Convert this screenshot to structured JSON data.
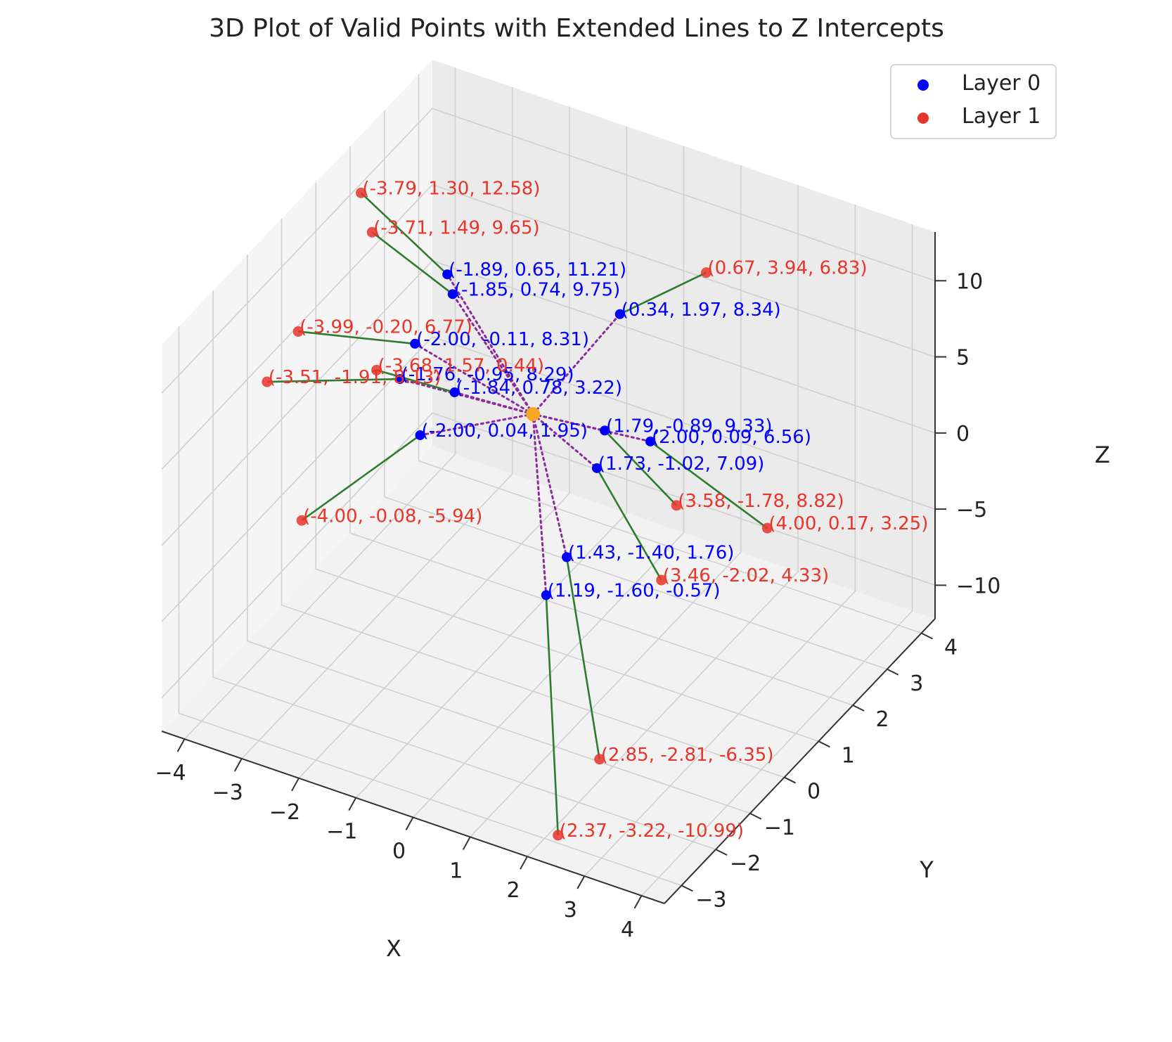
{
  "chart_data": {
    "type": "scatter",
    "projection": "3d",
    "title": "3D Plot of Valid Points with Extended Lines to Z Intercepts",
    "xlabel": "X",
    "ylabel": "Y",
    "zlabel": "Z",
    "xlim": [
      -4.4,
      4.4
    ],
    "ylim": [
      -3.5,
      4.4
    ],
    "zlim": [
      -12.2,
      13.2
    ],
    "xticks": [
      -4,
      -3,
      -2,
      -1,
      0,
      1,
      2,
      3,
      4
    ],
    "yticks": [
      -3,
      -2,
      -1,
      0,
      1,
      2,
      3,
      4
    ],
    "zticks": [
      -10,
      -5,
      0,
      5,
      10
    ],
    "grid": true,
    "legend_position": "upper right",
    "colors": {
      "layer0": "#0000ff",
      "layer1": "#e8352a",
      "origin": "#f5a623",
      "extension_line": "#2e7d2e",
      "projection_line": "#8b2a9b"
    },
    "origin_point": [
      0,
      0,
      6
    ],
    "series": [
      {
        "name": "Layer 0",
        "points": [
          {
            "x": -1.89,
            "y": 0.65,
            "z": 11.21,
            "label": "(-1.89, 0.65, 11.21)"
          },
          {
            "x": -1.85,
            "y": 0.74,
            "z": 9.75,
            "label": "(-1.85, 0.74, 9.75)"
          },
          {
            "x": 0.34,
            "y": 1.97,
            "z": 8.34,
            "label": "(0.34, 1.97, 8.34)"
          },
          {
            "x": -2.0,
            "y": -0.11,
            "z": 8.31,
            "label": "(-2.00, -0.11, 8.31)"
          },
          {
            "x": -1.76,
            "y": -0.95,
            "z": 8.29,
            "label": "(-1.76, -0.95, 8.29)"
          },
          {
            "x": -1.84,
            "y": 0.78,
            "z": 3.22,
            "label": "(-1.84, 0.78, 3.22)"
          },
          {
            "x": 1.79,
            "y": -0.89,
            "z": 9.33,
            "label": "(1.79, -0.89, 9.33)"
          },
          {
            "x": 2.0,
            "y": 0.09,
            "z": 6.56,
            "label": "(2.00, 0.09, 6.56)"
          },
          {
            "x": -2.0,
            "y": 0.04,
            "z": 1.95,
            "label": "(-2.00, 0.04, 1.95)"
          },
          {
            "x": 1.73,
            "y": -1.02,
            "z": 7.09,
            "label": "(1.73, -1.02, 7.09)"
          },
          {
            "x": 1.43,
            "y": -1.4,
            "z": 1.76,
            "label": "(1.43, -1.40, 1.76)"
          },
          {
            "x": 1.19,
            "y": -1.6,
            "z": -0.57,
            "label": "(1.19, -1.60, -0.57)"
          }
        ]
      },
      {
        "name": "Layer 1",
        "points": [
          {
            "x": -3.79,
            "y": 1.3,
            "z": 12.58,
            "label": "(-3.79, 1.30, 12.58)"
          },
          {
            "x": -3.71,
            "y": 1.49,
            "z": 9.65,
            "label": "(-3.71, 1.49, 9.65)"
          },
          {
            "x": 0.67,
            "y": 3.94,
            "z": 6.83,
            "label": "(0.67, 3.94, 6.83)"
          },
          {
            "x": -3.99,
            "y": -0.2,
            "z": 6.77,
            "label": "(-3.99, -0.20, 6.77)"
          },
          {
            "x": -3.51,
            "y": -1.91,
            "z": 8.13,
            "label": "(-3.51, -1.91, 8.13)"
          },
          {
            "x": -3.68,
            "y": 1.57,
            "z": 0.44,
            "label": "(-3.68, 1.57, 0.44)"
          },
          {
            "x": 3.58,
            "y": -1.78,
            "z": 8.82,
            "label": "(3.58, -1.78, 8.82)"
          },
          {
            "x": 4.0,
            "y": 0.17,
            "z": 3.25,
            "label": "(4.00, 0.17, 3.25)"
          },
          {
            "x": -4.0,
            "y": -0.08,
            "z": -5.94,
            "label": "(-4.00, -0.08, -5.94)"
          },
          {
            "x": 3.46,
            "y": -2.02,
            "z": 4.33,
            "label": "(3.46, -2.02, 4.33)"
          },
          {
            "x": 2.85,
            "y": -2.81,
            "z": -6.35,
            "label": "(2.85, -2.81, -6.35)"
          },
          {
            "x": 2.37,
            "y": -3.22,
            "z": -10.99,
            "label": "(2.37, -3.22, -10.99)"
          }
        ]
      }
    ]
  }
}
